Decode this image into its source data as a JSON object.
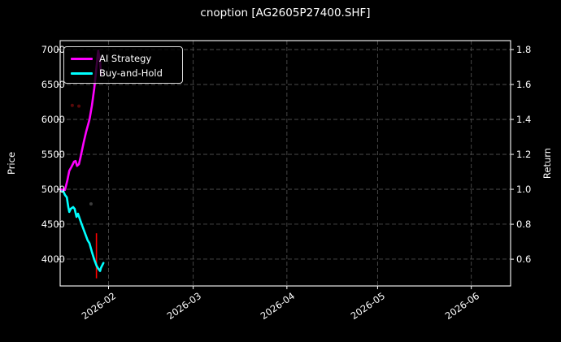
{
  "figure": {
    "background_color": "#000000",
    "text_color": "#ffffff",
    "grid_color": "#4d4d4d",
    "spine_color": "#ffffff"
  },
  "chart_data": {
    "type": "line",
    "title": "cnoption [AG2605P27400.SHF]",
    "legend": {
      "position": "upper-left",
      "entries": [
        "AI Strategy",
        "Buy-and-Hold"
      ]
    },
    "left_axis": {
      "label": "Price",
      "ticks": [
        7000,
        6500,
        6000,
        5500,
        5000,
        4500,
        4000
      ],
      "ylim": [
        3616,
        7128
      ]
    },
    "right_axis": {
      "label": "Return",
      "ticks": [
        1.8,
        1.6,
        1.4,
        1.2,
        1.0,
        0.8,
        0.6
      ],
      "ylim": [
        0.447,
        1.851
      ]
    },
    "x_axis": {
      "start_date": "2026-01-16",
      "end_date": "2026-06-14",
      "total_days": 149,
      "ticks": [
        {
          "day_offset": 16,
          "label": "2026-02"
        },
        {
          "day_offset": 44,
          "label": "2026-03"
        },
        {
          "day_offset": 75,
          "label": "2026-04"
        },
        {
          "day_offset": 105,
          "label": "2026-05"
        },
        {
          "day_offset": 136,
          "label": "2026-06"
        }
      ]
    },
    "series": [
      {
        "name": "AI Strategy",
        "color": "#ff00ff",
        "x_days": [
          0,
          1.6,
          2.4,
          3.0,
          3.8,
          4.6,
          5.1,
          5.6,
          6.2,
          6.7,
          7.8,
          8.6,
          9.7,
          10.5,
          11.3,
          11.8,
          12.4,
          12.6,
          13.2,
          13.5
        ],
        "prices": [
          5000,
          4990,
          5130,
          5265,
          5325,
          5395,
          5405,
          5335,
          5360,
          5450,
          5675,
          5825,
          6000,
          6195,
          6450,
          6660,
          6915,
          6985,
          6830,
          6635
        ]
      },
      {
        "name": "Buy-and-Hold",
        "color": "#00ffff",
        "x_days": [
          0,
          1.1,
          1.6,
          2.2,
          2.7,
          3.0,
          3.5,
          4.3,
          4.8,
          5.4,
          5.9,
          6.7,
          7.5,
          8.3,
          9.1,
          9.7,
          10.5,
          11.3,
          12.1,
          12.6,
          13.2,
          13.5,
          14.3
        ],
        "prices": [
          5000,
          4965,
          4920,
          4885,
          4745,
          4675,
          4720,
          4745,
          4720,
          4605,
          4650,
          4550,
          4455,
          4360,
          4270,
          4225,
          4105,
          3990,
          3900,
          3865,
          3830,
          3875,
          3945
        ]
      }
    ],
    "markers": {
      "red_vline": {
        "day_offset": 12.0,
        "price_from": 4370,
        "price_to": 3725,
        "color": "#ff0000"
      },
      "faint_dots": [
        {
          "day_offset": 4.0,
          "price": 6200,
          "color": "#5a0a0a"
        },
        {
          "day_offset": 6.2,
          "price": 6190,
          "color": "#5a0a0a"
        },
        {
          "day_offset": 10.2,
          "price": 4790,
          "color": "#3c3c3c"
        }
      ]
    }
  }
}
